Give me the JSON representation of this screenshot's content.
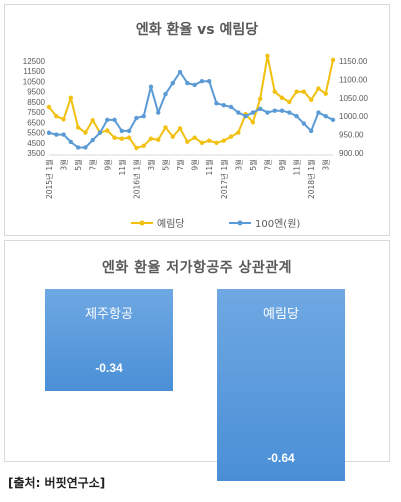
{
  "top_chart": {
    "title": "엔화 환율 vs 예림당",
    "left_axis_ticks": [
      "12500",
      "11500",
      "10500",
      "9500",
      "8500",
      "7500",
      "6500",
      "5500",
      "4500",
      "3500"
    ],
    "right_axis_ticks": [
      "1150.00",
      "1100.00",
      "1050.00",
      "1000.00",
      "950.00",
      "900.00"
    ],
    "x_tick_labels": [
      "2015년 1월",
      "3월",
      "5월",
      "7월",
      "9월",
      "11월",
      "2016년 1월",
      "3월",
      "5월",
      "7월",
      "9월",
      "11월",
      "2017년 1월",
      "3월",
      "5월",
      "7월",
      "9월",
      "11월",
      "2018년 1월",
      "3월"
    ],
    "legend": [
      {
        "name": "예림당",
        "color": "#f2c010"
      },
      {
        "name": "100엔(원)",
        "color": "#5b9bd5"
      }
    ]
  },
  "chart_data": [
    {
      "type": "line",
      "title": "엔화 환율 vs 예림당",
      "categories": [
        "2015-01",
        "2015-02",
        "2015-03",
        "2015-04",
        "2015-05",
        "2015-06",
        "2015-07",
        "2015-08",
        "2015-09",
        "2015-10",
        "2015-11",
        "2015-12",
        "2016-01",
        "2016-02",
        "2016-03",
        "2016-04",
        "2016-05",
        "2016-06",
        "2016-07",
        "2016-08",
        "2016-09",
        "2016-10",
        "2016-11",
        "2016-12",
        "2017-01",
        "2017-02",
        "2017-03",
        "2017-04",
        "2017-05",
        "2017-06",
        "2017-07",
        "2017-08",
        "2017-09",
        "2017-10",
        "2017-11",
        "2017-12",
        "2018-01",
        "2018-02",
        "2018-03",
        "2018-04"
      ],
      "series": [
        {
          "name": "예림당",
          "axis": "left",
          "color": "#f2c010",
          "values": [
            8000,
            7100,
            6800,
            8900,
            6000,
            5500,
            6700,
            5500,
            5700,
            5000,
            4900,
            5000,
            4000,
            4200,
            4900,
            4800,
            6000,
            5100,
            5900,
            4600,
            5000,
            4500,
            4700,
            4500,
            4700,
            5100,
            5500,
            7300,
            6500,
            8800,
            13000,
            9500,
            8900,
            8500,
            9500,
            9500,
            8700,
            9800,
            9300,
            12600
          ]
        },
        {
          "name": "100엔(원)",
          "axis": "right",
          "color": "#5b9bd5",
          "values": [
            955,
            950,
            950,
            930,
            915,
            915,
            935,
            955,
            990,
            990,
            960,
            960,
            995,
            1000,
            1080,
            1010,
            1060,
            1090,
            1120,
            1090,
            1085,
            1095,
            1095,
            1035,
            1030,
            1025,
            1010,
            1000,
            1010,
            1020,
            1010,
            1015,
            1015,
            1010,
            1000,
            980,
            960,
            1010,
            1000,
            990
          ]
        }
      ],
      "left_ylim": [
        3500,
        12500
      ],
      "right_ylim": [
        900,
        1150
      ],
      "grid": false,
      "legend_position": "bottom"
    },
    {
      "type": "bar",
      "title": "엔화 환율 저가항공주 상관관계",
      "categories": [
        "제주항공",
        "예림당"
      ],
      "values": [
        -0.34,
        -0.64
      ],
      "value_labels": [
        "-0.34",
        "-0.64"
      ],
      "color": "#4a8fd6"
    }
  ],
  "bottom_chart": {
    "title": "엔화 환율 저가항공주 상관관계"
  },
  "source": "[출처: 버핏연구소]"
}
